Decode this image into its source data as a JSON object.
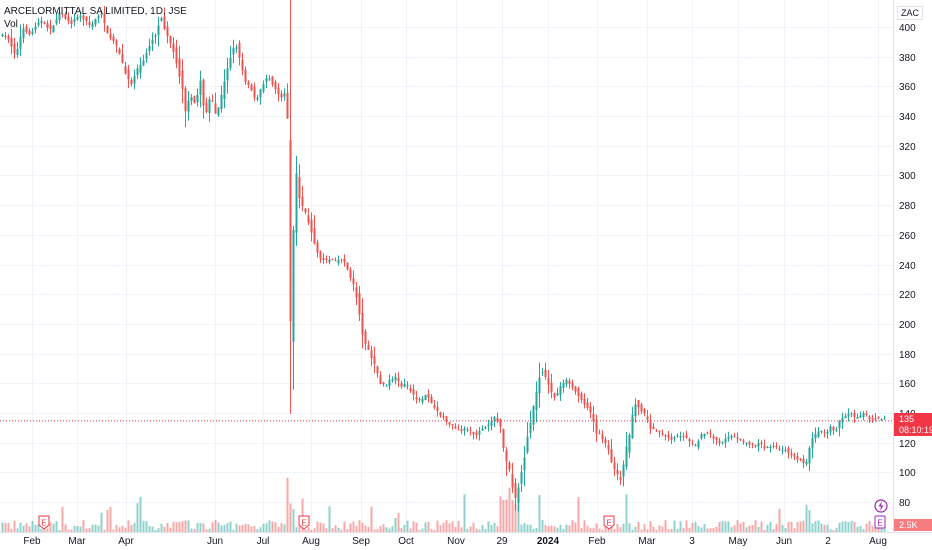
{
  "header": {
    "title": "ARCELORMITTAL SA LIMITED, 1D, JSE",
    "volume_label": "Vol"
  },
  "currency": "ZAC",
  "price_tag": {
    "last": "135",
    "countdown": "08:10:19"
  },
  "volume_tag": "2.5K",
  "colors": {
    "up": "#26a69a",
    "down": "#ef5350",
    "grid": "#f0f3fa",
    "price_line": "#f23645"
  },
  "chart_data": {
    "type": "candlestick",
    "title": "ARCELORMITTAL SA LIMITED, 1D, JSE",
    "ylim": [
      70,
      412
    ],
    "y_ticks": [
      80,
      100,
      120,
      140,
      160,
      180,
      200,
      220,
      240,
      260,
      280,
      300,
      320,
      340,
      360,
      380,
      400
    ],
    "x_tick_labels": [
      "Feb",
      "Mar",
      "Apr",
      "Jun",
      "Jul",
      "Aug",
      "Sep",
      "Oct",
      "Nov",
      "29",
      "2024",
      "Feb",
      "Mar",
      "3",
      "May",
      "Jun",
      "2",
      "Aug"
    ],
    "last_price": 135,
    "grid": true,
    "events": [
      {
        "label": "E",
        "x_label": "Feb"
      },
      {
        "label": "E",
        "x_label": "Aug"
      },
      {
        "label": "E",
        "x_label": "Feb"
      },
      {
        "label": "E",
        "x_label": "Aug"
      }
    ],
    "close_path": [
      [
        0,
        395
      ],
      [
        8,
        392
      ],
      [
        15,
        380
      ],
      [
        22,
        400
      ],
      [
        30,
        395
      ],
      [
        40,
        405
      ],
      [
        50,
        398
      ],
      [
        60,
        410
      ],
      [
        70,
        402
      ],
      [
        80,
        408
      ],
      [
        90,
        400
      ],
      [
        100,
        410
      ],
      [
        108,
        395
      ],
      [
        115,
        388
      ],
      [
        120,
        380
      ],
      [
        125,
        370
      ],
      [
        130,
        360
      ],
      [
        135,
        368
      ],
      [
        140,
        375
      ],
      [
        145,
        380
      ],
      [
        150,
        390
      ],
      [
        155,
        395
      ],
      [
        160,
        408
      ],
      [
        165,
        396
      ],
      [
        170,
        390
      ],
      [
        175,
        380
      ],
      [
        180,
        365
      ],
      [
        185,
        345
      ],
      [
        190,
        355
      ],
      [
        195,
        348
      ],
      [
        200,
        362
      ],
      [
        205,
        340
      ],
      [
        210,
        355
      ],
      [
        215,
        340
      ],
      [
        220,
        350
      ],
      [
        225,
        365
      ],
      [
        230,
        380
      ],
      [
        235,
        390
      ],
      [
        240,
        375
      ],
      [
        245,
        362
      ],
      [
        250,
        360
      ],
      [
        255,
        350
      ],
      [
        260,
        358
      ],
      [
        265,
        365
      ],
      [
        270,
        365
      ],
      [
        275,
        358
      ],
      [
        280,
        352
      ],
      [
        285,
        355
      ],
      [
        287,
        338
      ],
      [
        288,
        200
      ],
      [
        290,
        190
      ],
      [
        293,
        265
      ],
      [
        296,
        300
      ],
      [
        300,
        280
      ],
      [
        305,
        275
      ],
      [
        310,
        265
      ],
      [
        315,
        250
      ],
      [
        320,
        245
      ],
      [
        325,
        242
      ],
      [
        330,
        244
      ],
      [
        335,
        242
      ],
      [
        340,
        244
      ],
      [
        345,
        240
      ],
      [
        350,
        232
      ],
      [
        355,
        222
      ],
      [
        360,
        200
      ],
      [
        365,
        185
      ],
      [
        370,
        180
      ],
      [
        375,
        170
      ],
      [
        380,
        160
      ],
      [
        385,
        158
      ],
      [
        390,
        162
      ],
      [
        395,
        165
      ],
      [
        400,
        158
      ],
      [
        405,
        160
      ],
      [
        410,
        155
      ],
      [
        415,
        150
      ],
      [
        420,
        148
      ],
      [
        425,
        152
      ],
      [
        430,
        148
      ],
      [
        435,
        142
      ],
      [
        440,
        138
      ],
      [
        445,
        136
      ],
      [
        450,
        132
      ],
      [
        455,
        130
      ],
      [
        460,
        128
      ],
      [
        465,
        130
      ],
      [
        470,
        128
      ],
      [
        475,
        125
      ],
      [
        480,
        128
      ],
      [
        485,
        130
      ],
      [
        490,
        133
      ],
      [
        495,
        138
      ],
      [
        500,
        130
      ],
      [
        505,
        110
      ],
      [
        510,
        98
      ],
      [
        515,
        82
      ],
      [
        520,
        95
      ],
      [
        525,
        115
      ],
      [
        530,
        135
      ],
      [
        535,
        150
      ],
      [
        540,
        170
      ],
      [
        545,
        165
      ],
      [
        550,
        155
      ],
      [
        555,
        150
      ],
      [
        560,
        158
      ],
      [
        565,
        162
      ],
      [
        570,
        160
      ],
      [
        575,
        155
      ],
      [
        580,
        150
      ],
      [
        585,
        145
      ],
      [
        590,
        140
      ],
      [
        595,
        128
      ],
      [
        600,
        125
      ],
      [
        605,
        120
      ],
      [
        610,
        110
      ],
      [
        615,
        100
      ],
      [
        620,
        95
      ],
      [
        625,
        112
      ],
      [
        630,
        130
      ],
      [
        635,
        148
      ],
      [
        640,
        142
      ],
      [
        645,
        138
      ],
      [
        650,
        130
      ],
      [
        655,
        128
      ],
      [
        660,
        126
      ],
      [
        665,
        125
      ],
      [
        670,
        122
      ],
      [
        675,
        124
      ],
      [
        680,
        125
      ],
      [
        685,
        123
      ],
      [
        690,
        120
      ],
      [
        695,
        118
      ],
      [
        700,
        125
      ],
      [
        705,
        127
      ],
      [
        710,
        125
      ],
      [
        715,
        122
      ],
      [
        720,
        120
      ],
      [
        725,
        122
      ],
      [
        730,
        125
      ],
      [
        735,
        124
      ],
      [
        740,
        122
      ],
      [
        745,
        120
      ],
      [
        750,
        118
      ],
      [
        755,
        118
      ],
      [
        760,
        120
      ],
      [
        765,
        116
      ],
      [
        770,
        118
      ],
      [
        775,
        117
      ],
      [
        780,
        115
      ],
      [
        785,
        115
      ],
      [
        790,
        112
      ],
      [
        795,
        110
      ],
      [
        800,
        108
      ],
      [
        805,
        105
      ],
      [
        808,
        110
      ],
      [
        810,
        120
      ],
      [
        815,
        125
      ],
      [
        820,
        128
      ],
      [
        825,
        125
      ],
      [
        830,
        130
      ],
      [
        835,
        128
      ],
      [
        840,
        135
      ],
      [
        845,
        138
      ],
      [
        850,
        140
      ],
      [
        855,
        136
      ],
      [
        860,
        138
      ],
      [
        865,
        140
      ],
      [
        870,
        135
      ],
      [
        875,
        137
      ],
      [
        880,
        135
      ],
      [
        885,
        136
      ]
    ]
  }
}
